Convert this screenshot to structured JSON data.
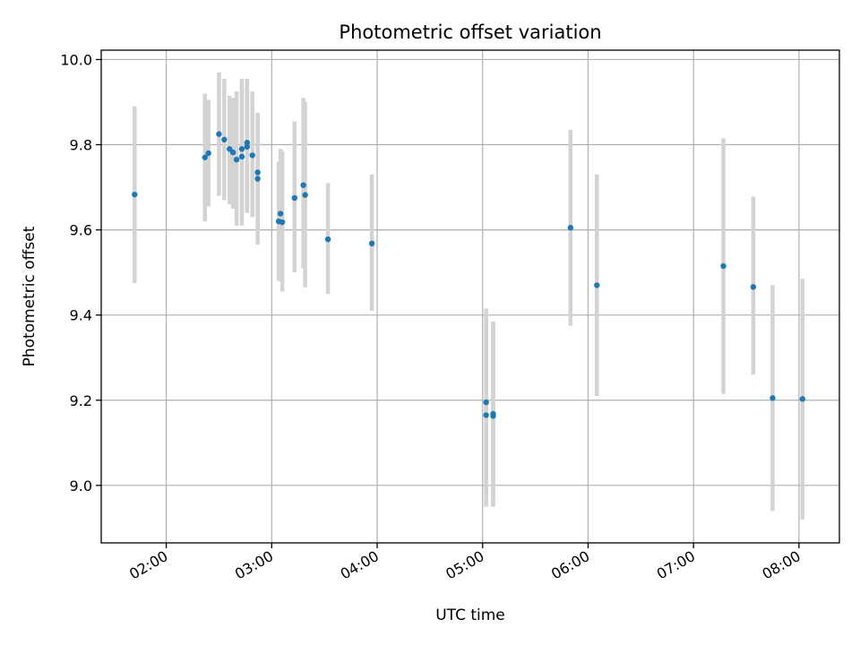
{
  "chart_data": {
    "type": "scatter",
    "title": "Photometric offset variation",
    "xlabel": "UTC time",
    "ylabel": "Photometric offset",
    "x_axis_kind": "time",
    "xlim": [
      "01:23",
      "08:23"
    ],
    "ylim": [
      8.865,
      10.022
    ],
    "x_ticks": [
      "02:00",
      "03:00",
      "04:00",
      "05:00",
      "06:00",
      "07:00",
      "08:00"
    ],
    "y_ticks": [
      9.0,
      9.2,
      9.4,
      9.6,
      9.8,
      10.0
    ],
    "y_tick_labels": [
      "9.0",
      "9.2",
      "9.4",
      "9.6",
      "9.8",
      "10.0"
    ],
    "grid": true,
    "colors": {
      "point": "#1f77b4",
      "error_bar": "#d3d3d3"
    },
    "points": [
      {
        "time": "01:42",
        "y": 9.683,
        "low": 9.475,
        "high": 9.89
      },
      {
        "time": "02:22",
        "y": 9.77,
        "low": 9.62,
        "high": 9.92
      },
      {
        "time": "02:24",
        "y": 9.78,
        "low": 9.655,
        "high": 9.905
      },
      {
        "time": "02:30",
        "y": 9.825,
        "low": 9.68,
        "high": 9.97
      },
      {
        "time": "02:33",
        "y": 9.812,
        "low": 9.67,
        "high": 9.955
      },
      {
        "time": "02:36",
        "y": 9.79,
        "low": 9.66,
        "high": 9.915
      },
      {
        "time": "02:38",
        "y": 9.782,
        "low": 9.65,
        "high": 9.91
      },
      {
        "time": "02:40",
        "y": 9.765,
        "low": 9.61,
        "high": 9.925
      },
      {
        "time": "02:43",
        "y": 9.79,
        "low": 9.64,
        "high": 9.955
      },
      {
        "time": "02:43",
        "y": 9.772,
        "low": 9.61,
        "high": 9.94
      },
      {
        "time": "02:46",
        "y": 9.805,
        "low": 9.65,
        "high": 9.955
      },
      {
        "time": "02:46",
        "y": 9.795,
        "low": 9.64,
        "high": 9.95
      },
      {
        "time": "02:49",
        "y": 9.775,
        "low": 9.63,
        "high": 9.925
      },
      {
        "time": "02:52",
        "y": 9.735,
        "low": 9.6,
        "high": 9.875
      },
      {
        "time": "02:52",
        "y": 9.72,
        "low": 9.565,
        "high": 9.875
      },
      {
        "time": "03:04",
        "y": 9.62,
        "low": 9.48,
        "high": 9.76
      },
      {
        "time": "03:05",
        "y": 9.638,
        "low": 9.52,
        "high": 9.79
      },
      {
        "time": "03:06",
        "y": 9.618,
        "low": 9.455,
        "high": 9.785
      },
      {
        "time": "03:13",
        "y": 9.675,
        "low": 9.5,
        "high": 9.855
      },
      {
        "time": "03:18",
        "y": 9.705,
        "low": 9.51,
        "high": 9.91
      },
      {
        "time": "03:19",
        "y": 9.682,
        "low": 9.465,
        "high": 9.9
      },
      {
        "time": "03:32",
        "y": 9.578,
        "low": 9.45,
        "high": 9.71
      },
      {
        "time": "03:57",
        "y": 9.568,
        "low": 9.41,
        "high": 9.73
      },
      {
        "time": "05:02",
        "y": 9.195,
        "low": 8.97,
        "high": 9.415
      },
      {
        "time": "05:02",
        "y": 9.165,
        "low": 8.95,
        "high": 9.39
      },
      {
        "time": "05:06",
        "y": 9.168,
        "low": 8.955,
        "high": 9.385
      },
      {
        "time": "05:06",
        "y": 9.163,
        "low": 8.95,
        "high": 9.38
      },
      {
        "time": "05:50",
        "y": 9.605,
        "low": 9.375,
        "high": 9.835
      },
      {
        "time": "06:05",
        "y": 9.47,
        "low": 9.21,
        "high": 9.73
      },
      {
        "time": "07:17",
        "y": 9.515,
        "low": 9.215,
        "high": 9.815
      },
      {
        "time": "07:34",
        "y": 9.466,
        "low": 9.26,
        "high": 9.678
      },
      {
        "time": "07:45",
        "y": 9.205,
        "low": 8.94,
        "high": 9.47
      },
      {
        "time": "08:02",
        "y": 9.203,
        "low": 8.92,
        "high": 9.485
      }
    ]
  }
}
